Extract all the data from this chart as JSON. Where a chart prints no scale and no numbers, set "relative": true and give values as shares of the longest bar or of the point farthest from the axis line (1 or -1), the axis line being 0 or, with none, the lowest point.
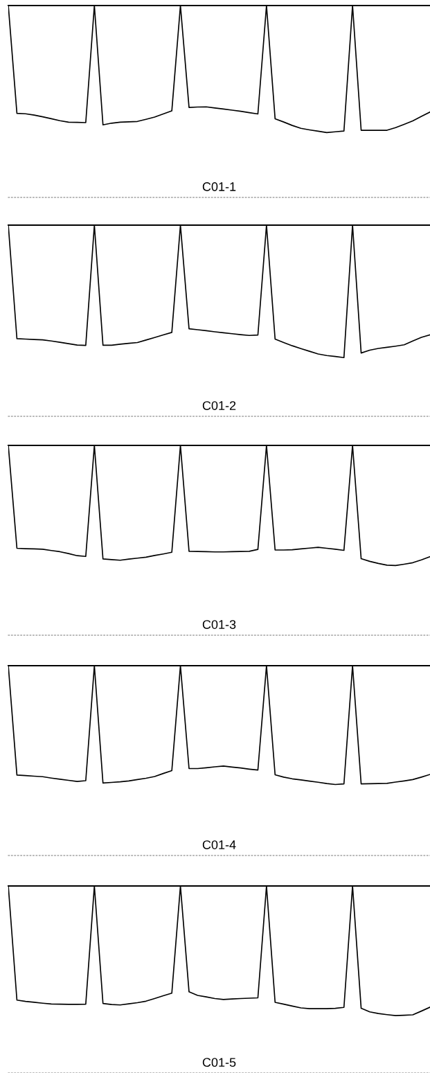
{
  "chart_data": [
    {
      "type": "line",
      "relative": true,
      "color": "#000000",
      "annotations": [
        "C01-1"
      ],
      "categories": [
        null,
        null,
        null,
        null,
        null,
        null,
        null,
        null,
        null,
        null,
        null,
        null,
        null,
        null,
        null,
        null,
        null,
        null,
        null,
        null,
        null,
        null,
        null,
        null,
        null,
        null,
        null,
        null,
        null,
        null,
        null,
        null,
        null,
        null,
        null,
        null,
        null,
        null,
        null,
        null,
        null,
        null,
        null,
        null,
        null,
        null,
        null,
        null,
        null,
        null
      ],
      "values": [
        1,
        0.438,
        0.436,
        0.429,
        0.42,
        0.41,
        0.4,
        0.392,
        0.391,
        0.39,
        1,
        0.378,
        0.387,
        0.392,
        0.394,
        0.396,
        0.407,
        0.419,
        0.435,
        0.451,
        1,
        0.469,
        0.471,
        0.472,
        0.466,
        0.461,
        0.455,
        0.449,
        0.442,
        0.435,
        1,
        0.41,
        0.393,
        0.375,
        0.36,
        0.352,
        0.345,
        0.338,
        0.342,
        0.346,
        1,
        0.35,
        0.35,
        0.35,
        0.35,
        0.364,
        0.381,
        0.399,
        0.422,
        0.445
      ]
    },
    {
      "type": "line",
      "relative": true,
      "color": "#000000",
      "annotations": [
        "C01-2"
      ],
      "categories": [
        null,
        null,
        null,
        null,
        null,
        null,
        null,
        null,
        null,
        null,
        null,
        null,
        null,
        null,
        null,
        null,
        null,
        null,
        null,
        null,
        null,
        null,
        null,
        null,
        null,
        null,
        null,
        null,
        null,
        null,
        null,
        null,
        null,
        null,
        null,
        null,
        null,
        null,
        null,
        null,
        null,
        null,
        null,
        null,
        null,
        null,
        null,
        null,
        null,
        null
      ],
      "values": [
        1,
        0.406,
        0.404,
        0.402,
        0.4,
        0.394,
        0.387,
        0.38,
        0.373,
        0.371,
        1,
        0.372,
        0.372,
        0.377,
        0.382,
        0.386,
        0.399,
        0.412,
        0.426,
        0.439,
        1,
        0.458,
        0.453,
        0.448,
        0.442,
        0.437,
        0.432,
        0.427,
        0.423,
        0.425,
        1,
        0.404,
        0.386,
        0.369,
        0.354,
        0.34,
        0.326,
        0.318,
        0.313,
        0.307,
        1,
        0.331,
        0.346,
        0.355,
        0.361,
        0.367,
        0.374,
        0.394,
        0.413,
        0.426
      ]
    },
    {
      "type": "line",
      "relative": true,
      "color": "#000000",
      "annotations": [
        "C01-3"
      ],
      "categories": [
        null,
        null,
        null,
        null,
        null,
        null,
        null,
        null,
        null,
        null,
        null,
        null,
        null,
        null,
        null,
        null,
        null,
        null,
        null,
        null,
        null,
        null,
        null,
        null,
        null,
        null,
        null,
        null,
        null,
        null,
        null,
        null,
        null,
        null,
        null,
        null,
        null,
        null,
        null,
        null,
        null,
        null,
        null,
        null,
        null,
        null,
        null,
        null,
        null,
        null
      ],
      "values": [
        1,
        0.458,
        0.456,
        0.455,
        0.453,
        0.446,
        0.44,
        0.43,
        0.419,
        0.415,
        1,
        0.402,
        0.398,
        0.395,
        0.401,
        0.406,
        0.411,
        0.42,
        0.428,
        0.437,
        1,
        0.442,
        0.441,
        0.44,
        0.439,
        0.439,
        0.44,
        0.441,
        0.442,
        0.452,
        1,
        0.449,
        0.449,
        0.45,
        0.455,
        0.459,
        0.463,
        0.458,
        0.453,
        0.447,
        1,
        0.403,
        0.389,
        0.378,
        0.369,
        0.367,
        0.374,
        0.382,
        0.397,
        0.414
      ]
    },
    {
      "type": "line",
      "relative": true,
      "color": "#000000",
      "annotations": [
        "C01-4"
      ],
      "categories": [
        null,
        null,
        null,
        null,
        null,
        null,
        null,
        null,
        null,
        null,
        null,
        null,
        null,
        null,
        null,
        null,
        null,
        null,
        null,
        null,
        null,
        null,
        null,
        null,
        null,
        null,
        null,
        null,
        null,
        null,
        null,
        null,
        null,
        null,
        null,
        null,
        null,
        null,
        null,
        null,
        null,
        null,
        null,
        null,
        null,
        null,
        null,
        null,
        null,
        null
      ],
      "values": [
        1,
        0.424,
        0.421,
        0.418,
        0.415,
        0.408,
        0.402,
        0.396,
        0.39,
        0.394,
        1,
        0.382,
        0.385,
        0.388,
        0.393,
        0.4,
        0.407,
        0.416,
        0.432,
        0.447,
        1,
        0.458,
        0.458,
        0.462,
        0.467,
        0.471,
        0.466,
        0.461,
        0.455,
        0.45,
        1,
        0.425,
        0.413,
        0.404,
        0.398,
        0.392,
        0.386,
        0.379,
        0.374,
        0.377,
        1,
        0.377,
        0.378,
        0.379,
        0.38,
        0.387,
        0.393,
        0.4,
        0.413,
        0.427
      ]
    },
    {
      "type": "line",
      "relative": true,
      "color": "#000000",
      "annotations": [
        "C01-5"
      ],
      "categories": [
        null,
        null,
        null,
        null,
        null,
        null,
        null,
        null,
        null,
        null,
        null,
        null,
        null,
        null,
        null,
        null,
        null,
        null,
        null,
        null,
        null,
        null,
        null,
        null,
        null,
        null,
        null,
        null,
        null,
        null,
        null,
        null,
        null,
        null,
        null,
        null,
        null,
        null,
        null,
        null,
        null,
        null,
        null,
        null,
        null,
        null,
        null,
        null,
        null,
        null
      ],
      "values": [
        1,
        0.39,
        0.383,
        0.378,
        0.373,
        0.369,
        0.368,
        0.367,
        0.367,
        0.368,
        1,
        0.372,
        0.366,
        0.364,
        0.37,
        0.376,
        0.384,
        0.398,
        0.413,
        0.427,
        1,
        0.434,
        0.415,
        0.407,
        0.398,
        0.393,
        0.396,
        0.398,
        0.4,
        0.402,
        1,
        0.378,
        0.368,
        0.358,
        0.348,
        0.344,
        0.344,
        0.344,
        0.346,
        0.351,
        1,
        0.346,
        0.327,
        0.318,
        0.312,
        0.307,
        0.309,
        0.311,
        0.331,
        0.352
      ]
    }
  ]
}
